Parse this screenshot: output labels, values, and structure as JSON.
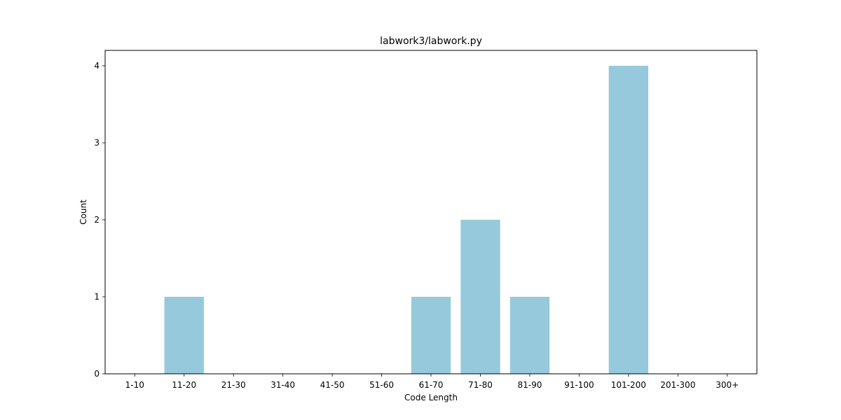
{
  "chart_data": {
    "type": "bar",
    "title": "labwork3/labwork.py",
    "xlabel": "Code Length",
    "ylabel": "Count",
    "categories": [
      "1-10",
      "11-20",
      "21-30",
      "31-40",
      "41-50",
      "51-60",
      "61-70",
      "71-80",
      "81-90",
      "91-100",
      "101-200",
      "201-300",
      "300+"
    ],
    "values": [
      0,
      1,
      0,
      0,
      0,
      0,
      1,
      2,
      1,
      0,
      4,
      0,
      0
    ],
    "yticks": [
      0,
      1,
      2,
      3,
      4
    ],
    "ylim": [
      0,
      4.2
    ],
    "bar_color": "#96c9dc",
    "grid": false,
    "legend": "none"
  }
}
